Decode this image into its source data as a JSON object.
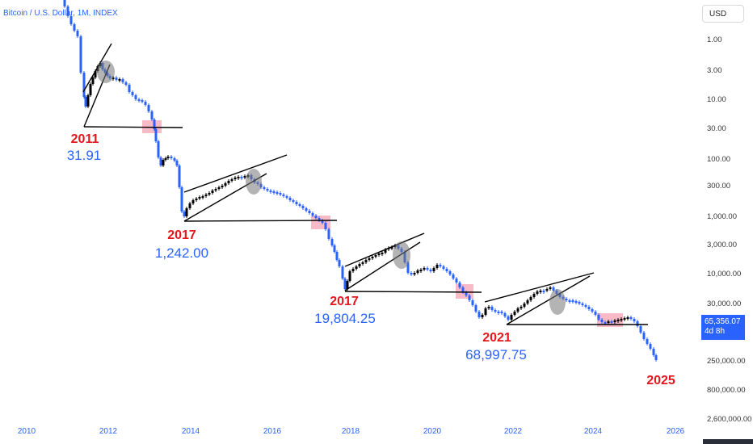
{
  "header": {
    "title": "Bitcoin / U.S. Dollar, 1M, INDEX"
  },
  "toolbar": {
    "currency_label": "USD"
  },
  "price_tag": {
    "value": "65,356.07",
    "countdown": "4d 8h"
  },
  "chart_data": {
    "type": "candlestick",
    "scale": "log",
    "y_axis_inverted": true,
    "x_ticks": [
      "2010",
      "2012",
      "2014",
      "2016",
      "2018",
      "2020",
      "2022",
      "2024",
      "2026"
    ],
    "y_ticks": [
      "1.00",
      "3.00",
      "10.00",
      "30.00",
      "100.00",
      "300.00",
      "1,000.00",
      "3,000.00",
      "10,000.00",
      "30,000.00",
      "250,000.00",
      "800,000.00",
      "2,600,000.00"
    ],
    "annotations": [
      {
        "year": "2011",
        "value": "31.91"
      },
      {
        "year": "2017",
        "value": "1,242.00"
      },
      {
        "year": "2017",
        "value": "19,804.25"
      },
      {
        "year": "2021",
        "value": "68,997.75"
      },
      {
        "year": "2025",
        "value": ""
      }
    ],
    "colors": {
      "up": "#000000",
      "down": "#2962ff",
      "year_label": "#e5161c",
      "value_label": "#2962ff",
      "highlight": "#f5a3b4"
    }
  }
}
